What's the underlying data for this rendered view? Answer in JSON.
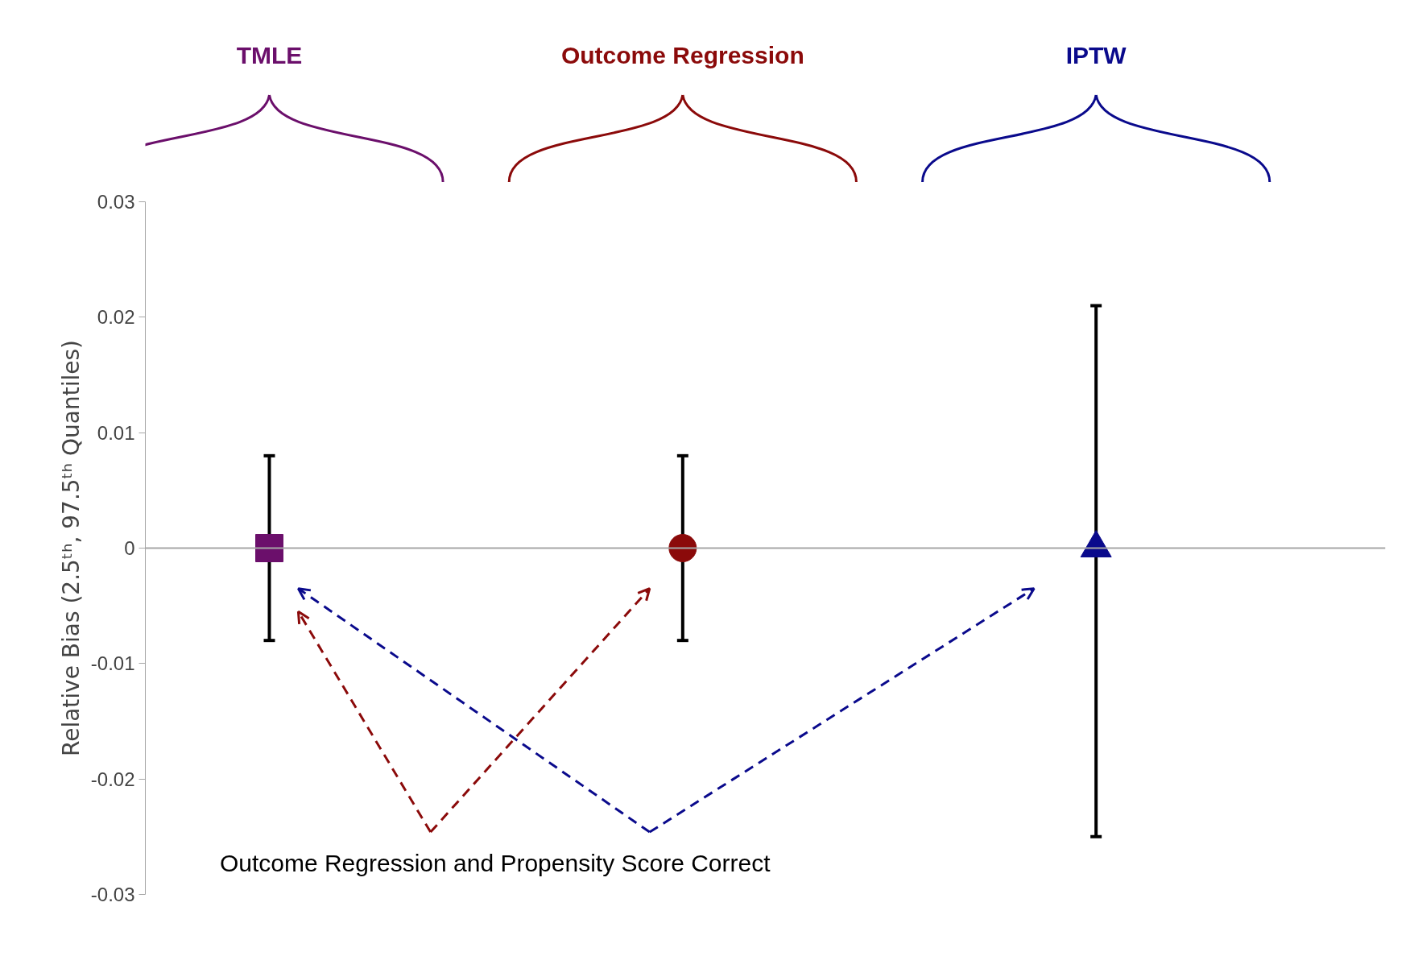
{
  "chart_data": {
    "type": "scatter",
    "categories": [
      "TMLE",
      "Outcome Regression",
      "IPTW"
    ],
    "ylabel": "Relative Bias (2.5ᵗʰ, 97.5ᵗʰ Quantiles)",
    "ylim": [
      -0.03,
      0.03
    ],
    "yticks": [
      -0.03,
      -0.02,
      -0.01,
      0,
      0.01,
      0.02,
      0.03
    ],
    "grid": false,
    "series": [
      {
        "color": "#6b0f6b",
        "marker": "square",
        "values": [
          0,
          null,
          null
        ],
        "errors": [
          [
            -0.008,
            0.008
          ],
          null,
          null
        ]
      },
      {
        "color": "#8b0a0a",
        "marker": "circle",
        "values": [
          null,
          0,
          null
        ],
        "errors": [
          null,
          [
            -0.008,
            0.008
          ],
          null
        ]
      },
      {
        "color": "#0a0a8c",
        "marker": "triangle",
        "values": [
          null,
          null,
          0
        ],
        "errors": [
          null,
          null,
          [
            -0.025,
            0.021
          ]
        ]
      }
    ],
    "ref_lines": [
      {
        "axis": "y",
        "value": 0,
        "color": "#a6a6a6"
      }
    ],
    "annotations": [
      "Outcome Regression and Propensity Score Correct"
    ]
  }
}
